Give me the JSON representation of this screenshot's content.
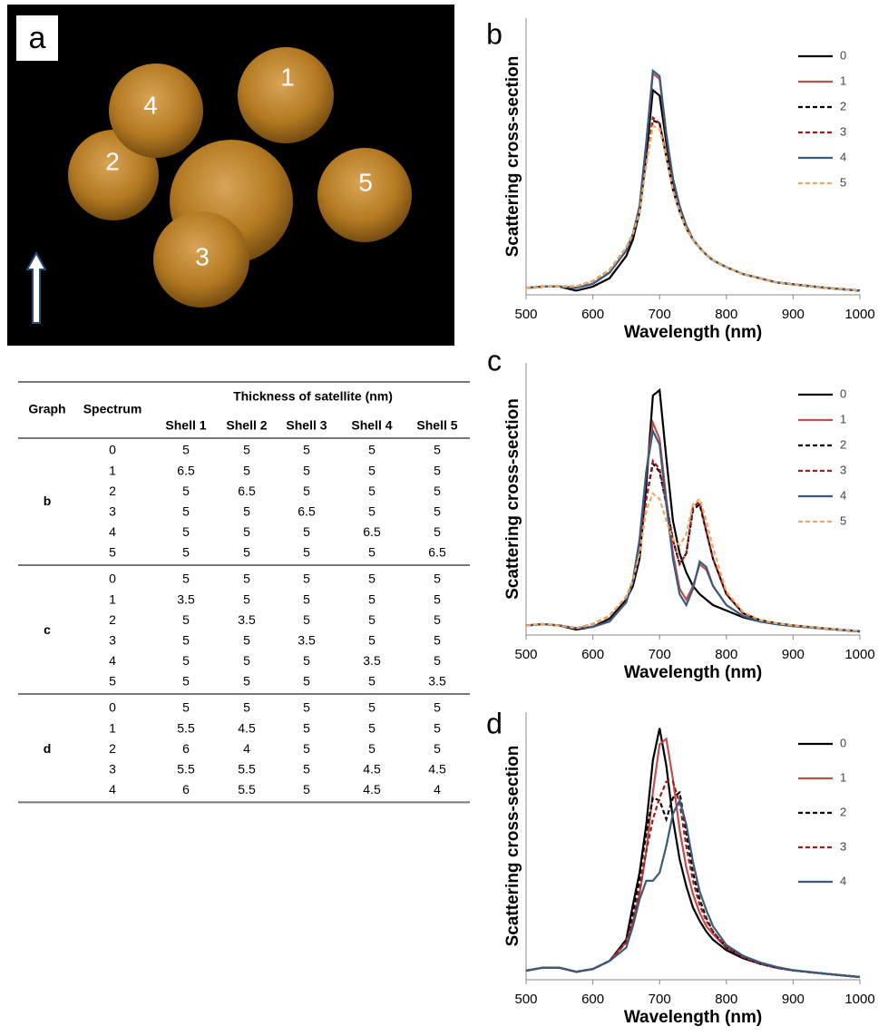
{
  "figure_a": {
    "panel_label": "a",
    "sphere_labels": [
      "1",
      "2",
      "3",
      "4",
      "5"
    ]
  },
  "table": {
    "headers": {
      "graph": "Graph",
      "spectrum": "Spectrum",
      "group": "Thickness of satellite (nm)",
      "shells": [
        "Shell 1",
        "Shell 2",
        "Shell 3",
        "Shell 4",
        "Shell 5"
      ]
    },
    "groups": [
      {
        "graph": "b",
        "rows": [
          [
            "0",
            "5",
            "5",
            "5",
            "5",
            "5"
          ],
          [
            "1",
            "6.5",
            "5",
            "5",
            "5",
            "5"
          ],
          [
            "2",
            "5",
            "6.5",
            "5",
            "5",
            "5"
          ],
          [
            "3",
            "5",
            "5",
            "6.5",
            "5",
            "5"
          ],
          [
            "4",
            "5",
            "5",
            "5",
            "6.5",
            "5"
          ],
          [
            "5",
            "5",
            "5",
            "5",
            "5",
            "6.5"
          ]
        ]
      },
      {
        "graph": "c",
        "rows": [
          [
            "0",
            "5",
            "5",
            "5",
            "5",
            "5"
          ],
          [
            "1",
            "3.5",
            "5",
            "5",
            "5",
            "5"
          ],
          [
            "2",
            "5",
            "3.5",
            "5",
            "5",
            "5"
          ],
          [
            "3",
            "5",
            "5",
            "3.5",
            "5",
            "5"
          ],
          [
            "4",
            "5",
            "5",
            "5",
            "3.5",
            "5"
          ],
          [
            "5",
            "5",
            "5",
            "5",
            "5",
            "3.5"
          ]
        ]
      },
      {
        "graph": "d",
        "rows": [
          [
            "0",
            "5",
            "5",
            "5",
            "5",
            "5"
          ],
          [
            "1",
            "5.5",
            "4.5",
            "5",
            "5",
            "5"
          ],
          [
            "2",
            "6",
            "4",
            "5",
            "5",
            "5"
          ],
          [
            "3",
            "5.5",
            "5.5",
            "5",
            "4.5",
            "4.5"
          ],
          [
            "4",
            "6",
            "5.5",
            "5",
            "4.5",
            "4"
          ]
        ]
      }
    ]
  },
  "chart_data": [
    {
      "type": "line",
      "panel_label": "b",
      "xlabel": "Wavelength (nm)",
      "ylabel": "Scattering cross-section",
      "xlim": [
        500,
        1000
      ],
      "xticks": [
        500,
        600,
        700,
        800,
        900,
        1000
      ],
      "ylim": [
        0,
        100
      ],
      "x": [
        500,
        525,
        550,
        575,
        600,
        625,
        650,
        660,
        670,
        680,
        690,
        700,
        710,
        720,
        730,
        740,
        750,
        760,
        770,
        780,
        800,
        825,
        850,
        875,
        900,
        950,
        1000
      ],
      "series": [
        {
          "name": "0",
          "color": "#000000",
          "dash": false,
          "values": [
            2.5,
            3,
            3,
            1.5,
            3,
            6,
            14,
            20,
            30,
            50,
            74,
            72,
            55,
            40,
            31,
            25,
            20,
            17,
            14.5,
            12.5,
            10,
            7.5,
            6,
            4.5,
            3.8,
            2.5,
            1.5
          ]
        },
        {
          "name": "1",
          "color": "#c0504d",
          "dash": false,
          "values": [
            2.5,
            3,
            3,
            2.5,
            4,
            8,
            16,
            22,
            32,
            55,
            80,
            78,
            58,
            42,
            32,
            25,
            20,
            17,
            14.5,
            12.5,
            10,
            7.5,
            6,
            4.5,
            3.8,
            2.5,
            1.5
          ]
        },
        {
          "name": "2",
          "color": "#000000",
          "dash": true,
          "values": [
            2.5,
            3,
            3,
            3,
            5,
            9,
            17,
            22,
            30,
            48,
            63,
            62,
            50,
            38,
            30,
            24,
            20,
            17,
            14.5,
            12.5,
            10,
            7.5,
            6,
            4.5,
            3.8,
            2.5,
            1.5
          ]
        },
        {
          "name": "3",
          "color": "#9b1c1c",
          "dash": true,
          "values": [
            2.5,
            3,
            3,
            3,
            5,
            9,
            17,
            22,
            30,
            48,
            64,
            62,
            50,
            38,
            30,
            24,
            20,
            17,
            14.5,
            12.5,
            10,
            7.5,
            6,
            4.5,
            3.8,
            2.5,
            1.5
          ]
        },
        {
          "name": "4",
          "color": "#3b5b7e",
          "dash": false,
          "values": [
            2.5,
            3,
            3,
            2.5,
            4,
            8,
            16,
            22,
            32,
            55,
            81,
            79,
            58,
            42,
            32,
            25,
            20,
            17,
            14.5,
            12.5,
            10,
            7.5,
            6,
            4.5,
            3.8,
            2.5,
            1.5
          ]
        },
        {
          "name": "5",
          "color": "#f0a860",
          "dash": true,
          "values": [
            2.5,
            3,
            3,
            3,
            5,
            9,
            17,
            22,
            30,
            47,
            61,
            60,
            50,
            38,
            30,
            24,
            20,
            17,
            14.5,
            12.5,
            10,
            7.5,
            6,
            4.5,
            3.8,
            2.5,
            1.5
          ]
        }
      ]
    },
    {
      "type": "line",
      "panel_label": "c",
      "xlabel": "Wavelength (nm)",
      "ylabel": "Scattering cross-section",
      "xlim": [
        500,
        1000
      ],
      "xticks": [
        500,
        600,
        700,
        800,
        900,
        1000
      ],
      "ylim": [
        0,
        100
      ],
      "x": [
        500,
        525,
        550,
        575,
        600,
        625,
        650,
        660,
        670,
        680,
        690,
        700,
        710,
        720,
        730,
        740,
        750,
        760,
        770,
        780,
        800,
        825,
        850,
        875,
        900,
        950,
        1000
      ],
      "series": [
        {
          "name": "0",
          "color": "#000000",
          "dash": false,
          "values": [
            3.5,
            4,
            3.5,
            2,
            3,
            6,
            13,
            18,
            28,
            55,
            88,
            90,
            65,
            42,
            30,
            23,
            18,
            15,
            13,
            11,
            9,
            6.5,
            5,
            4,
            3.3,
            2.3,
            1.3
          ]
        },
        {
          "name": "1",
          "color": "#c0504d",
          "dash": false,
          "values": [
            3.5,
            4,
            3.5,
            2.5,
            3,
            5,
            12,
            20,
            35,
            60,
            78,
            72,
            50,
            30,
            17,
            13,
            18,
            26,
            24,
            18,
            11,
            7,
            5,
            4,
            3.3,
            2.3,
            1.3
          ]
        },
        {
          "name": "2",
          "color": "#000000",
          "dash": true,
          "values": [
            3.5,
            4,
            3.5,
            2.5,
            4,
            7,
            14,
            20,
            32,
            50,
            63,
            60,
            48,
            35,
            26,
            30,
            46,
            48,
            38,
            28,
            15,
            8,
            5.5,
            4.3,
            3.5,
            2.4,
            1.4
          ]
        },
        {
          "name": "3",
          "color": "#9b1c1c",
          "dash": true,
          "values": [
            3.5,
            4,
            3.5,
            2.5,
            4,
            7,
            14,
            20,
            32,
            50,
            64,
            61,
            48,
            35,
            26,
            30,
            47,
            49,
            38,
            28,
            15,
            8,
            5.5,
            4.3,
            3.5,
            2.4,
            1.4
          ]
        },
        {
          "name": "4",
          "color": "#3b5b7e",
          "dash": false,
          "values": [
            3.5,
            4,
            3.5,
            2.5,
            3,
            5,
            12,
            20,
            35,
            60,
            75,
            70,
            48,
            28,
            15,
            11,
            17,
            27,
            25,
            18,
            11,
            7,
            5,
            4,
            3.3,
            2.3,
            1.3
          ]
        },
        {
          "name": "5",
          "color": "#f0a860",
          "dash": true,
          "values": [
            3.5,
            4,
            3.5,
            2.5,
            4,
            7,
            14,
            20,
            30,
            46,
            52,
            50,
            42,
            35,
            33,
            37,
            48,
            50,
            42,
            32,
            16,
            8.5,
            5.5,
            4.3,
            3.5,
            2.4,
            1.4
          ]
        }
      ]
    },
    {
      "type": "line",
      "panel_label": "d",
      "xlabel": "Wavelength (nm)",
      "ylabel": "Scattering cross-section",
      "xlim": [
        500,
        1000
      ],
      "xticks": [
        500,
        600,
        700,
        800,
        900,
        1000
      ],
      "ylim": [
        0,
        100
      ],
      "x": [
        500,
        525,
        550,
        575,
        600,
        625,
        650,
        660,
        670,
        680,
        690,
        700,
        710,
        720,
        730,
        740,
        750,
        760,
        770,
        780,
        800,
        825,
        850,
        875,
        900,
        950,
        1000
      ],
      "series": [
        {
          "name": "0",
          "color": "#000000",
          "dash": false,
          "values": [
            3.4,
            4.5,
            4.5,
            3,
            4,
            7,
            15,
            28,
            40,
            58,
            82,
            94,
            80,
            60,
            45,
            35,
            27,
            22,
            18,
            15,
            11,
            8,
            6,
            4.5,
            3.5,
            2.2,
            1
          ]
        },
        {
          "name": "1",
          "color": "#c0504d",
          "dash": false,
          "values": [
            3.4,
            4.5,
            4.5,
            3,
            4,
            7,
            14,
            22,
            32,
            48,
            70,
            88,
            90,
            75,
            56,
            42,
            32,
            25,
            20,
            17,
            12,
            8.5,
            6,
            4.5,
            3.5,
            2.2,
            1
          ]
        },
        {
          "name": "2",
          "color": "#000000",
          "dash": true,
          "values": [
            3.4,
            4.5,
            4.5,
            3,
            4,
            7,
            14,
            25,
            38,
            55,
            68,
            67,
            60,
            68,
            70,
            55,
            40,
            30,
            23,
            18,
            12,
            8.5,
            6,
            4.5,
            3.5,
            2.2,
            1
          ]
        },
        {
          "name": "3",
          "color": "#9b1c1c",
          "dash": true,
          "values": [
            3.4,
            4.5,
            4.5,
            3,
            4,
            7,
            14,
            22,
            34,
            48,
            60,
            68,
            74,
            74,
            66,
            50,
            37,
            28,
            22,
            18,
            12,
            8.5,
            6,
            4.5,
            3.5,
            2.2,
            1
          ]
        },
        {
          "name": "4",
          "color": "#3b5b7e",
          "dash": false,
          "values": [
            3.4,
            4.5,
            4.5,
            3,
            4,
            7,
            12,
            20,
            30,
            37,
            37,
            40,
            50,
            62,
            67,
            58,
            44,
            33,
            26,
            20,
            13,
            9,
            6.5,
            4.8,
            3.6,
            2.2,
            1
          ]
        }
      ]
    }
  ]
}
